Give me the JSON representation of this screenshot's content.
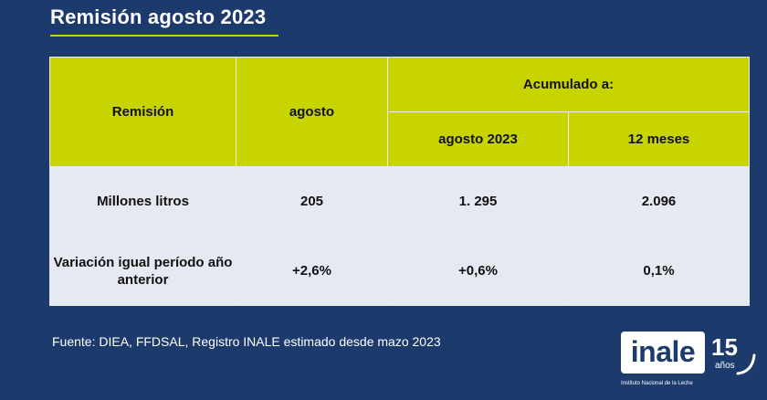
{
  "title": "Remisión agosto 2023",
  "table": {
    "header": {
      "col1": "Remisión",
      "col2": "agosto",
      "group": "Acumulado a:",
      "sub1": "agosto 2023",
      "sub2": "12 meses"
    },
    "rows": [
      {
        "label": "Millones litros",
        "agosto": "205",
        "acum_agosto": "1. 295",
        "acum_12": "2.096"
      },
      {
        "label": "Variación igual período año anterior",
        "agosto": "+2,6%",
        "acum_agosto": "+0,6%",
        "acum_12": "0,1%"
      }
    ]
  },
  "footnote": "Fuente: DIEA, FFDSAL, Registro INALE estimado desde mazo 2023",
  "logo": {
    "name": "inale",
    "number": "15",
    "anos": "años",
    "subtitle": "Instituto Nacional de la Leche"
  }
}
